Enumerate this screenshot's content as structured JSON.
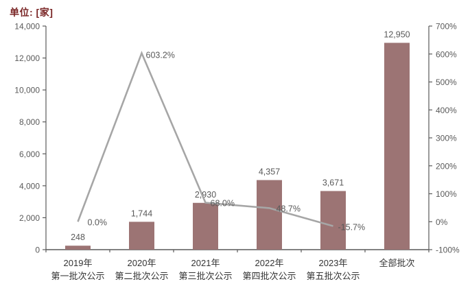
{
  "chart_data": {
    "type": "bar+line",
    "unit_label": "单位: [家]",
    "categories": [
      "2019年",
      "2020年",
      "2021年",
      "2022年",
      "2023年",
      "全部批次"
    ],
    "category_sublabels": [
      "第一批次公示",
      "第二批次公示",
      "第三批次公示",
      "第四批次公示",
      "第五批次公示",
      ""
    ],
    "bar_series": {
      "axis": "left",
      "values": [
        248,
        1744,
        2930,
        4357,
        3671,
        12950
      ],
      "labels": [
        "248",
        "1,744",
        "2,930",
        "4,357",
        "3,671",
        "12,950"
      ]
    },
    "line_series": {
      "axis": "right",
      "values": [
        0.0,
        603.2,
        68.0,
        48.7,
        -15.7
      ],
      "labels": [
        "0.0%",
        "603.2%",
        "68.0%",
        "48.7%",
        "-15.7%"
      ]
    },
    "left_axis": {
      "min": 0,
      "max": 14000,
      "step": 2000,
      "tick_labels": [
        "0",
        "2,000",
        "4,000",
        "6,000",
        "8,000",
        "10,000",
        "12,000",
        "14,000"
      ]
    },
    "right_axis": {
      "min": -100,
      "max": 700,
      "step": 100,
      "tick_labels": [
        "-100%",
        "0%",
        "100%",
        "200%",
        "300%",
        "400%",
        "500%",
        "600%",
        "700%"
      ]
    },
    "grid": false,
    "legend": "none",
    "colors": {
      "bar": "#9c7474",
      "line": "#a6a6a6",
      "axis": "#595959",
      "value_label": "#595959",
      "tick_label": "#595959",
      "category_label": "#333333",
      "unit_label": "#7a2626",
      "background": "#ffffff"
    }
  }
}
